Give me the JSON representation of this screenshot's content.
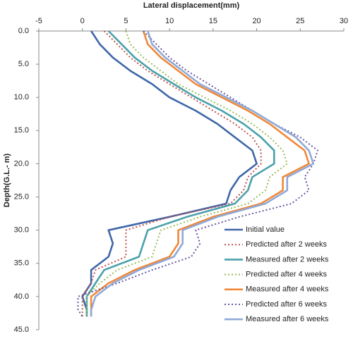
{
  "chart_data": {
    "type": "line",
    "x_label": "Lateral displacement(mm)",
    "y_label": "Depth(G.L.- m)",
    "xlim": [
      -5,
      30
    ],
    "xticks": [
      -5,
      0,
      5,
      10,
      15,
      20,
      25,
      30
    ],
    "x_position": "top",
    "ylim": [
      0,
      45
    ],
    "y_reversed": true,
    "yticks": [
      {
        "value": 0,
        "label": "0.0"
      },
      {
        "value": 5,
        "label": "5.0"
      },
      {
        "value": 10,
        "label": "10.0"
      },
      {
        "value": 15,
        "label": "15.0"
      },
      {
        "value": 20,
        "label": "20.0"
      },
      {
        "value": 25,
        "label": "25.0"
      },
      {
        "value": 30,
        "label": "30.0"
      },
      {
        "value": 35,
        "label": "35.0"
      },
      {
        "value": 40,
        "label": "40.0"
      },
      {
        "value": 45,
        "label": "45.0"
      }
    ],
    "legend": "lower right",
    "y": [
      0,
      2,
      4,
      6,
      8,
      10,
      12,
      14,
      16,
      18,
      20,
      22,
      24,
      26,
      28,
      30,
      32,
      34,
      36,
      38,
      40,
      42,
      43
    ],
    "series": [
      {
        "name": "Initial value",
        "color": "#3f67a8",
        "style": "solid",
        "values": [
          1,
          2,
          3.5,
          5.5,
          8,
          10,
          13,
          15.5,
          17.5,
          19.5,
          20,
          18,
          17,
          16.5,
          10,
          3,
          3.5,
          3,
          1,
          1,
          0,
          0.5,
          0.5
        ]
      },
      {
        "name": "Predicted after 2 weeks",
        "color": "#c0504d",
        "style": "dotted",
        "values": [
          2.5,
          4,
          5.5,
          7.5,
          10,
          12.5,
          15,
          17.5,
          19.5,
          20.5,
          20.5,
          19,
          18.5,
          17,
          10,
          5,
          5,
          5,
          1.5,
          1,
          0,
          0,
          0
        ]
      },
      {
        "name": "Measured after 2 weeks",
        "color": "#4aa1ab",
        "style": "solid",
        "values": [
          3,
          4.5,
          6,
          8,
          10.5,
          13,
          16,
          18.5,
          20.5,
          22,
          22,
          19.5,
          19,
          17.5,
          12,
          7.5,
          7,
          6.5,
          2.5,
          1.5,
          0.5,
          0.5,
          0.5
        ]
      },
      {
        "name": "Predicted after 4 weeks",
        "color": "#9bbb59",
        "style": "dotted",
        "values": [
          5,
          5.5,
          7,
          9,
          11,
          14,
          17,
          19.5,
          21.5,
          23,
          23.5,
          21.5,
          21,
          19,
          13.5,
          9,
          8.5,
          8,
          4,
          2,
          0.5,
          0.5,
          0.5
        ]
      },
      {
        "name": "Measured after 4 weeks",
        "color": "#f0883a",
        "style": "solid",
        "values": [
          7,
          7.5,
          9,
          11,
          13,
          16,
          19,
          21.5,
          23.5,
          25.5,
          26,
          23,
          23,
          20.5,
          15,
          11,
          11,
          10,
          6,
          3,
          1,
          1,
          1
        ]
      },
      {
        "name": "Predicted after 6 weeks",
        "color": "#6a55a0",
        "style": "dotted",
        "values": [
          7,
          8.5,
          10,
          12,
          14.5,
          17,
          19.5,
          22,
          25,
          27,
          26.5,
          25.5,
          26,
          24,
          18,
          13,
          13.5,
          12.5,
          8,
          4,
          -0.5,
          -0.5,
          0
        ]
      },
      {
        "name": "Measured after 6 weeks",
        "color": "#8fa9d6",
        "style": "solid",
        "values": [
          7.5,
          8,
          9.5,
          11.5,
          13.5,
          16.5,
          19.5,
          22,
          24.5,
          26,
          26.5,
          23.5,
          23.5,
          21,
          15.5,
          11.5,
          11.5,
          10.5,
          6.5,
          3.5,
          1.5,
          1,
          1
        ]
      }
    ]
  }
}
